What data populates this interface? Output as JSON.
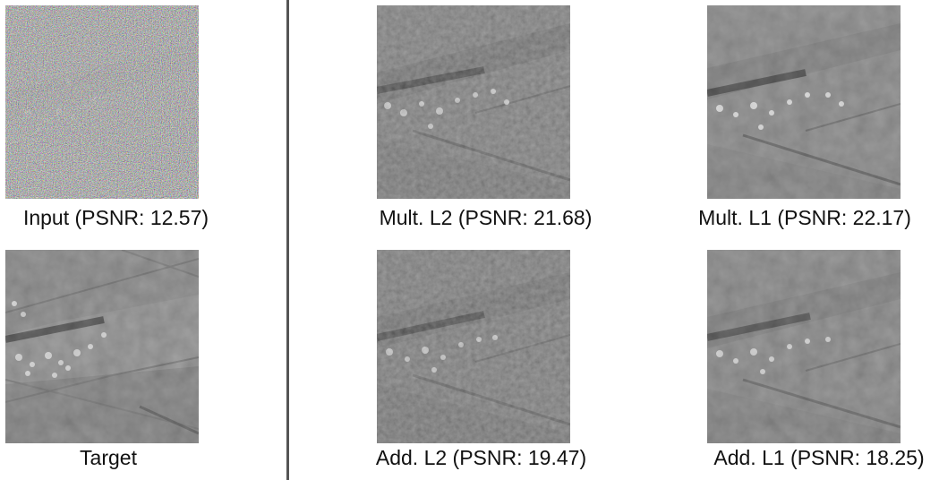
{
  "figure": {
    "panels": [
      {
        "id": "input",
        "caption": "Input (PSNR: 12.57)",
        "style": "noisy"
      },
      {
        "id": "target",
        "caption": "Target",
        "style": "target"
      },
      {
        "id": "mult_l2",
        "caption": "Mult. L2 (PSNR: 21.68)",
        "style": "mult-l2"
      },
      {
        "id": "mult_l1",
        "caption": "Mult. L1 (PSNR: 22.17)",
        "style": "mult-l1"
      },
      {
        "id": "add_l2",
        "caption": "Add. L2 (PSNR: 19.47)",
        "style": "add-l2"
      },
      {
        "id": "add_l1",
        "caption": "Add. L1 (PSNR: 18.25)",
        "style": "add-l1"
      }
    ]
  }
}
